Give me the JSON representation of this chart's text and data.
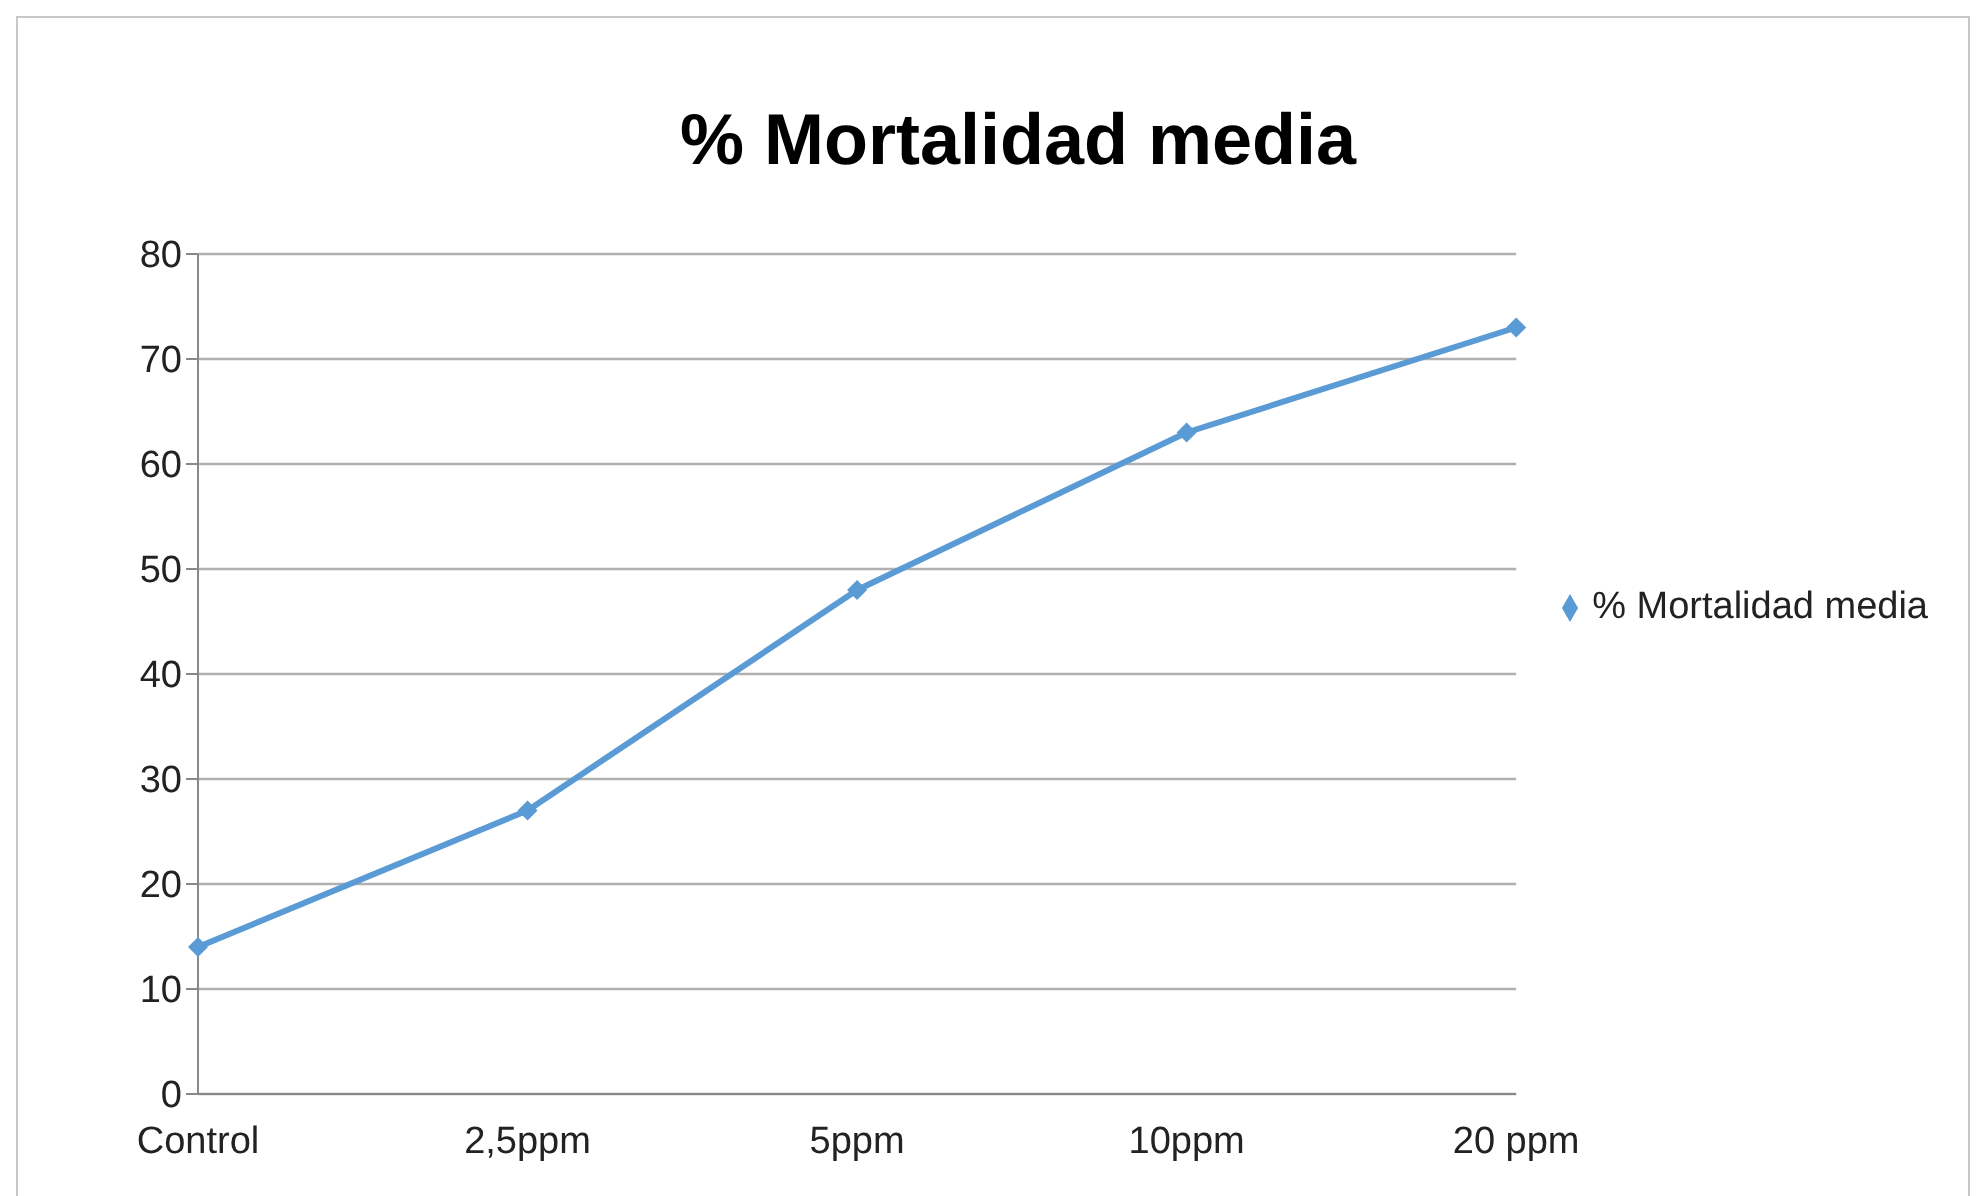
{
  "chart_data": {
    "type": "line",
    "title": "% Mortalidad media",
    "categories": [
      "Control",
      "2,5ppm",
      "5ppm",
      "10ppm",
      "20 ppm"
    ],
    "series": [
      {
        "name": "% Mortalidad media",
        "color": "#5b9bd5",
        "values": [
          14,
          27,
          48,
          63,
          73
        ]
      }
    ],
    "ylim": [
      0,
      80
    ],
    "yticks": [
      0,
      10,
      20,
      30,
      40,
      50,
      60,
      70,
      80
    ],
    "grid": "y",
    "legend": "right",
    "marker": "diamond"
  }
}
